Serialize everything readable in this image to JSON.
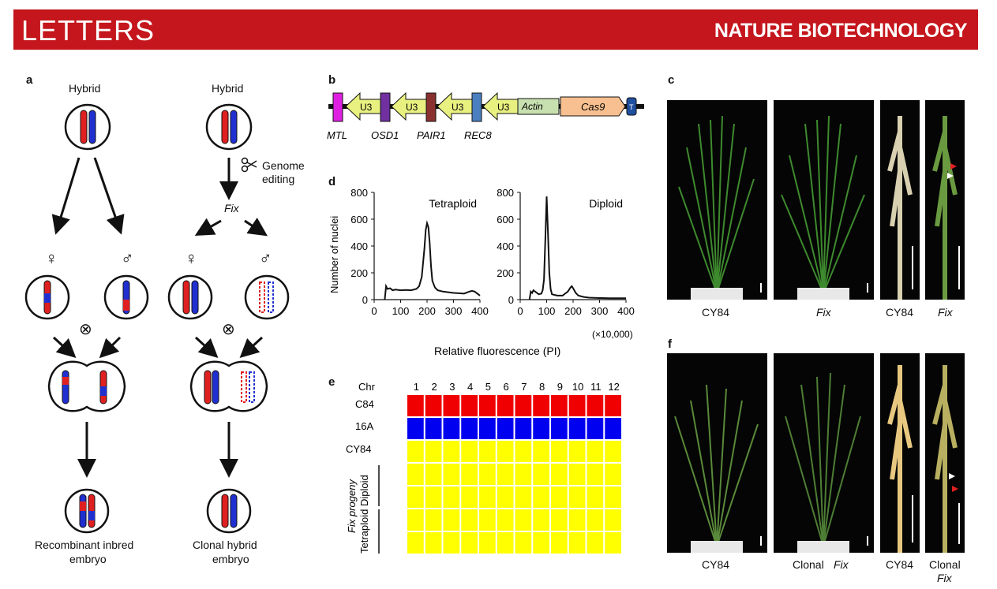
{
  "banner": {
    "left": "LETTERS",
    "right": "NATURE BIOTECHNOLOGY"
  },
  "panel_a": {
    "label": "a",
    "hybrid_left": "Hybrid",
    "hybrid_right": "Hybrid",
    "genome_editing_1": "Genome",
    "genome_editing_2": "editing",
    "fix": "Fix",
    "female": "♀",
    "male": "♂",
    "cross": "⊗",
    "result_left_1": "Recombinant inbred",
    "result_left_2": "embryo",
    "result_right_1": "Clonal hybrid",
    "result_right_2": "embryo"
  },
  "panel_b": {
    "label": "b",
    "u3": "U3",
    "actin": "Actin",
    "cas9": "Cas9",
    "t": "T",
    "genes": [
      "MTL",
      "OSD1",
      "PAIR1",
      "REC8"
    ]
  },
  "panel_d": {
    "label": "d",
    "ylabel": "Number of nuclei",
    "xlabel": "Relative fluorescence (PI)",
    "xunit": "(×10,000)"
  },
  "chart_data": [
    {
      "type": "line",
      "title": "Tetraploid",
      "ylabel": "Number of nuclei",
      "xlabel": "Relative fluorescence (PI)",
      "xlim": [
        0,
        400
      ],
      "ylim": [
        0,
        800
      ],
      "xticks": [
        0,
        100,
        200,
        300,
        400
      ],
      "yticks": [
        0,
        200,
        400,
        600,
        800
      ],
      "x": [
        40,
        45,
        50,
        60,
        70,
        80,
        100,
        120,
        140,
        160,
        170,
        180,
        190,
        195,
        200,
        205,
        210,
        215,
        220,
        230,
        240,
        260,
        280,
        300,
        320,
        340,
        360,
        370,
        380,
        390,
        400
      ],
      "y": [
        0,
        100,
        80,
        85,
        70,
        75,
        70,
        72,
        70,
        80,
        100,
        170,
        380,
        520,
        570,
        540,
        420,
        250,
        140,
        90,
        70,
        60,
        55,
        50,
        48,
        45,
        60,
        65,
        60,
        45,
        30
      ]
    },
    {
      "type": "line",
      "title": "Diploid",
      "xlabel": "Relative fluorescence (PI)",
      "xlim": [
        0,
        400
      ],
      "ylim": [
        0,
        800
      ],
      "xticks": [
        0,
        100,
        200,
        300,
        400
      ],
      "yticks": [
        0,
        200,
        400,
        600,
        800
      ],
      "x": [
        35,
        40,
        45,
        50,
        60,
        70,
        80,
        85,
        90,
        95,
        100,
        105,
        110,
        115,
        120,
        140,
        160,
        180,
        190,
        195,
        200,
        210,
        220,
        240,
        260,
        300,
        340,
        380,
        400
      ],
      "y": [
        0,
        60,
        50,
        70,
        55,
        40,
        45,
        70,
        150,
        450,
        770,
        500,
        200,
        80,
        40,
        30,
        30,
        60,
        90,
        100,
        85,
        50,
        30,
        20,
        15,
        12,
        10,
        10,
        10
      ]
    },
    {
      "type": "heatmap",
      "columns": [
        "1",
        "2",
        "3",
        "4",
        "5",
        "6",
        "7",
        "8",
        "9",
        "10",
        "11",
        "12"
      ],
      "rows": [
        "C84",
        "16A",
        "CY84",
        "",
        "",
        "",
        ""
      ],
      "row_colors": [
        "#f00000",
        "#0000f0",
        "#ffff00",
        "#ffff00",
        "#ffff00",
        "#ffff00",
        "#ffff00"
      ]
    }
  ],
  "panel_e": {
    "label": "e",
    "chr": "Chr",
    "rows": [
      "C84",
      "16A",
      "CY84"
    ],
    "group_a": "Fix progeny",
    "group_b": "Tetraploid Diploid"
  },
  "panel_c": {
    "label": "c",
    "captions": [
      "CY84",
      "Fix",
      "CY84",
      "Fix"
    ]
  },
  "panel_f": {
    "label": "f",
    "captions": [
      "CY84",
      "Clonal",
      "Fix",
      "CY84",
      "Clonal",
      "Fix"
    ]
  },
  "colors": {
    "banner": "#c4161c",
    "red": "#e02020",
    "blue": "#2030d0",
    "yellow": "#ffff00"
  }
}
